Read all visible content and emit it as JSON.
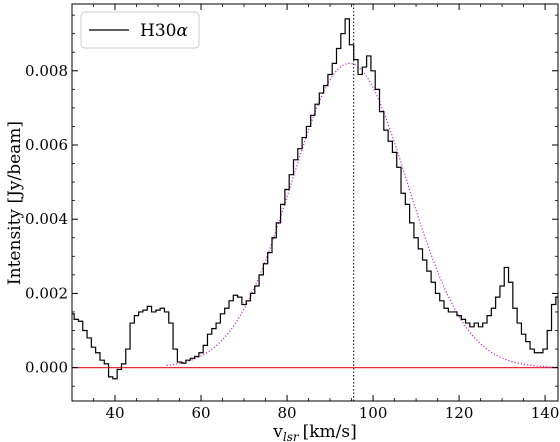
{
  "chart_data": {
    "type": "line",
    "xlabel": "v",
    "xlabel_sub": "lsr",
    "xlabel_unit": "[km/s]",
    "ylabel": "Intensity [Jy/beam]",
    "xlim": [
      30,
      143
    ],
    "ylim": [
      -0.0009,
      0.0098
    ],
    "x_ticks": [
      40,
      60,
      80,
      100,
      120,
      140
    ],
    "y_ticks": [
      0.0,
      0.002,
      0.004,
      0.006,
      0.008
    ],
    "y_tick_labels": [
      "0.000",
      "0.002",
      "0.004",
      "0.006",
      "0.008"
    ],
    "legend_position": "top-left",
    "grid": false,
    "series": [
      {
        "name": "H30α",
        "name_base": "H30",
        "name_greek": "α",
        "style": "steps",
        "color": "#000000",
        "points": [
          [
            30,
            0.00145
          ],
          [
            31,
            0.0013
          ],
          [
            32,
            0.00125
          ],
          [
            33,
            0.001
          ],
          [
            34,
            0.0008
          ],
          [
            35,
            0.00055
          ],
          [
            36,
            0.0004
          ],
          [
            37,
            0.0002
          ],
          [
            38,
            0.0001
          ],
          [
            39,
            -0.00025
          ],
          [
            40,
            -0.0003
          ],
          [
            41,
            -5e-05
          ],
          [
            42,
            0.0001
          ],
          [
            43,
            0.0005
          ],
          [
            44,
            0.0012
          ],
          [
            45,
            0.0014
          ],
          [
            46,
            0.0015
          ],
          [
            47,
            0.00155
          ],
          [
            48,
            0.00165
          ],
          [
            49,
            0.0015
          ],
          [
            50,
            0.00155
          ],
          [
            51,
            0.0016
          ],
          [
            52,
            0.0015
          ],
          [
            53,
            0.0012
          ],
          [
            54,
            0.0005
          ],
          [
            55,
            0.00015
          ],
          [
            56,
            0.00012
          ],
          [
            57,
            0.0002
          ],
          [
            58,
            0.00025
          ],
          [
            59,
            0.0003
          ],
          [
            60,
            0.0004
          ],
          [
            61,
            0.0006
          ],
          [
            62,
            0.0009
          ],
          [
            63,
            0.00105
          ],
          [
            64,
            0.0012
          ],
          [
            65,
            0.00145
          ],
          [
            66,
            0.0016
          ],
          [
            67,
            0.0018
          ],
          [
            68,
            0.00195
          ],
          [
            69,
            0.0019
          ],
          [
            70,
            0.0017
          ],
          [
            71,
            0.0018
          ],
          [
            72,
            0.002
          ],
          [
            73,
            0.0022
          ],
          [
            74,
            0.0025
          ],
          [
            75,
            0.0028
          ],
          [
            76,
            0.0031
          ],
          [
            77,
            0.0035
          ],
          [
            78,
            0.0039
          ],
          [
            79,
            0.0044
          ],
          [
            80,
            0.0048
          ],
          [
            81,
            0.0052
          ],
          [
            82,
            0.0056
          ],
          [
            83,
            0.0059
          ],
          [
            84,
            0.0062
          ],
          [
            85,
            0.0065
          ],
          [
            86,
            0.0068
          ],
          [
            87,
            0.0071
          ],
          [
            88,
            0.0074
          ],
          [
            89,
            0.0076
          ],
          [
            90,
            0.0079
          ],
          [
            91,
            0.0082
          ],
          [
            92,
            0.0086
          ],
          [
            93,
            0.009
          ],
          [
            94,
            0.0094
          ],
          [
            95,
            0.0087
          ],
          [
            96,
            0.0083
          ],
          [
            97,
            0.0079
          ],
          [
            98,
            0.0081
          ],
          [
            99,
            0.0084
          ],
          [
            100,
            0.008
          ],
          [
            101,
            0.0075
          ],
          [
            102,
            0.0069
          ],
          [
            103,
            0.0064
          ],
          [
            104,
            0.0061
          ],
          [
            105,
            0.0058
          ],
          [
            106,
            0.0054
          ],
          [
            107,
            0.0047
          ],
          [
            108,
            0.0044
          ],
          [
            109,
            0.0039
          ],
          [
            110,
            0.0035
          ],
          [
            111,
            0.0032
          ],
          [
            112,
            0.0029
          ],
          [
            113,
            0.0026
          ],
          [
            114,
            0.0023
          ],
          [
            115,
            0.002
          ],
          [
            116,
            0.0018
          ],
          [
            117,
            0.0016
          ],
          [
            118,
            0.0015
          ],
          [
            119,
            0.0015
          ],
          [
            120,
            0.0014
          ],
          [
            121,
            0.0013
          ],
          [
            122,
            0.0012
          ],
          [
            123,
            0.0011
          ],
          [
            124,
            0.0012
          ],
          [
            125,
            0.0011
          ],
          [
            126,
            0.0012
          ],
          [
            127,
            0.0014
          ],
          [
            128,
            0.0016
          ],
          [
            129,
            0.0019
          ],
          [
            130,
            0.0022
          ],
          [
            131,
            0.0027
          ],
          [
            132,
            0.0023
          ],
          [
            133,
            0.0016
          ],
          [
            134,
            0.0012
          ],
          [
            135,
            0.0009
          ],
          [
            136,
            0.0007
          ],
          [
            137,
            0.0005
          ],
          [
            138,
            0.0004
          ],
          [
            139,
            0.0004
          ],
          [
            140,
            0.0005
          ],
          [
            141,
            0.001
          ],
          [
            142,
            0.0017
          ],
          [
            143,
            0.0019
          ]
        ]
      },
      {
        "style": "dotted",
        "color": "#cc22cc",
        "model": "gaussian",
        "amplitude": 0.0082,
        "center": 94.5,
        "sigma": 13.5,
        "x_range": [
          52,
          143
        ]
      },
      {
        "style": "solid",
        "color": "#e8293c",
        "model": "constant",
        "value": 0.0
      }
    ],
    "vertical_marker": {
      "x": 95.5,
      "style": "dotted",
      "color": "#000000"
    }
  }
}
